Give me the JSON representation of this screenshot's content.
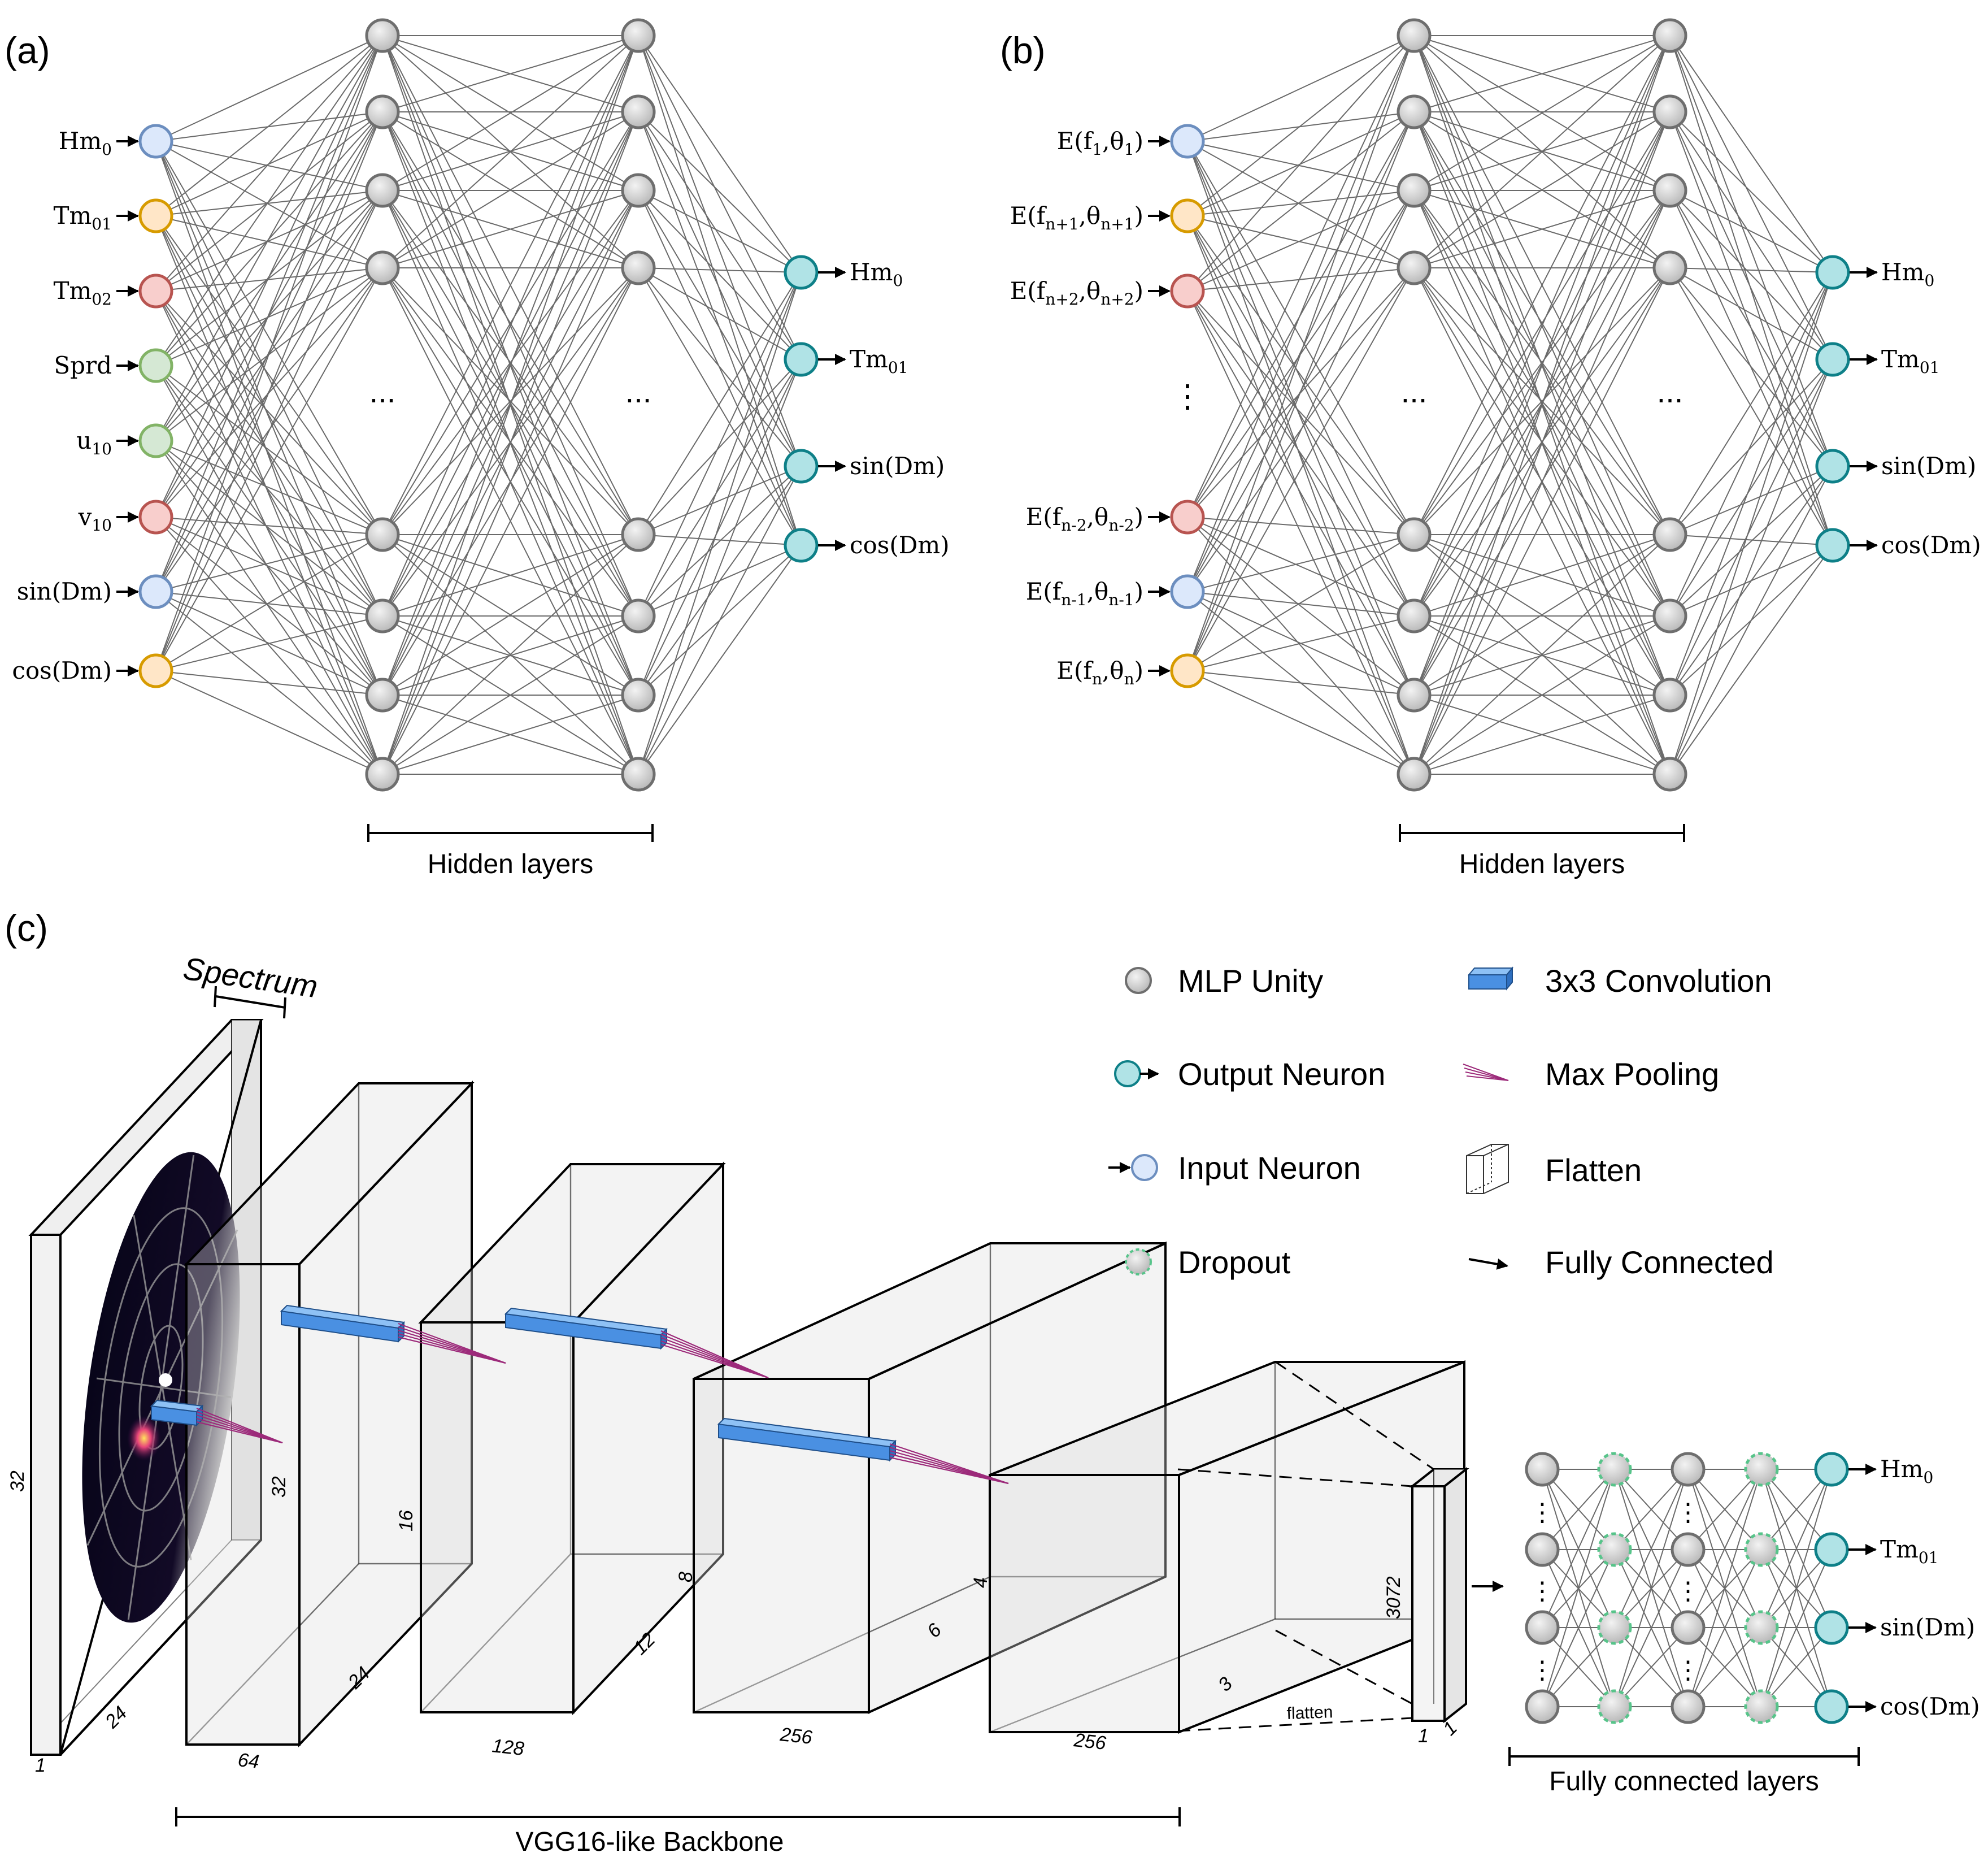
{
  "panels": {
    "a": "(a)",
    "b": "(b)",
    "c": "(c)"
  },
  "colors": {
    "blue": {
      "fill": "#dce8fb",
      "stroke": "#6c8ebf"
    },
    "orange": {
      "fill": "#ffe6c7",
      "stroke": "#d79b00"
    },
    "red": {
      "fill": "#f8cecc",
      "stroke": "#b85450"
    },
    "green": {
      "fill": "#d5e8d4",
      "stroke": "#82b366"
    },
    "teal": {
      "fill": "#b0e3e6",
      "stroke": "#0e8088"
    },
    "gray": {
      "fill": "#d0d0d0",
      "stroke": "#6e6e6e"
    },
    "conv": "#4a90e2",
    "pool": "#9c2a7a",
    "dropout": "#57c48a"
  },
  "panel_a": {
    "inputs": [
      {
        "base": "Hm",
        "sub": "0",
        "tail": "",
        "color": "blue"
      },
      {
        "base": "Tm",
        "sub": "01",
        "tail": "",
        "color": "orange"
      },
      {
        "base": "Tm",
        "sub": "02",
        "tail": "",
        "color": "red"
      },
      {
        "base": "Sprd",
        "sub": "",
        "tail": "",
        "color": "green"
      },
      {
        "base": "u",
        "sub": "10",
        "tail": "",
        "color": "green"
      },
      {
        "base": "v",
        "sub": "10",
        "tail": "",
        "color": "red"
      },
      {
        "base": "sin(Dm)",
        "sub": "",
        "tail": "",
        "color": "blue"
      },
      {
        "base": "cos(Dm)",
        "sub": "",
        "tail": "",
        "color": "orange"
      }
    ],
    "hidden_caption": "Hidden layers"
  },
  "panel_b": {
    "inputs": [
      {
        "base": "E(f",
        "sub": "1",
        "mid": ",θ",
        "sub2": "1",
        "tail": ")",
        "color": "blue"
      },
      {
        "base": "E(f",
        "sub": "n+1",
        "mid": ",θ",
        "sub2": "n+1",
        "tail": ")",
        "color": "orange"
      },
      {
        "base": "E(f",
        "sub": "n+2",
        "mid": ",θ",
        "sub2": "n+2",
        "tail": ")",
        "color": "red"
      },
      {
        "base": "E(f",
        "sub": "n-2",
        "mid": ",θ",
        "sub2": "n-2",
        "tail": ")",
        "color": "red"
      },
      {
        "base": "E(f",
        "sub": "n-1",
        "mid": ",θ",
        "sub2": "n-1",
        "tail": ")",
        "color": "blue"
      },
      {
        "base": "E(f",
        "sub": "n",
        "mid": ",θ",
        "sub2": "n",
        "tail": ")",
        "color": "orange"
      }
    ],
    "hidden_caption": "Hidden layers"
  },
  "outputs": [
    {
      "base": "Hm",
      "sub": "0"
    },
    {
      "base": "Tm",
      "sub": "01"
    },
    {
      "base": "sin(Dm)",
      "sub": ""
    },
    {
      "base": "cos(Dm)",
      "sub": ""
    }
  ],
  "ellipsis": "...",
  "vertical_ellipsis": "⋮",
  "panel_c": {
    "spectrum_label": "Spectrum",
    "input_dims": {
      "height": "32",
      "width": "24",
      "depth": "1"
    },
    "blocks": [
      {
        "channels": "64",
        "height": "32",
        "width": "24"
      },
      {
        "channels": "128",
        "height": "16",
        "width": "12"
      },
      {
        "channels": "256",
        "height": "8",
        "width": "6"
      },
      {
        "channels": "256",
        "height": "4",
        "width": "3"
      }
    ],
    "flatten_label": "flatten",
    "flat_dims": {
      "length": "3072",
      "a": "1",
      "b": "1"
    },
    "backbone_caption": "VGG16-like Backbone",
    "fc_caption": "Fully connected layers"
  },
  "legend": [
    {
      "key": "mlp",
      "label": "MLP Unity"
    },
    {
      "key": "output",
      "label": "Output Neuron"
    },
    {
      "key": "input",
      "label": "Input Neuron"
    },
    {
      "key": "dropout",
      "label": "Dropout"
    },
    {
      "key": "conv",
      "label": "3x3 Convolution"
    },
    {
      "key": "pool",
      "label": "Max Pooling"
    },
    {
      "key": "flatten",
      "label": "Flatten"
    },
    {
      "key": "fc",
      "label": "Fully Connected"
    }
  ]
}
